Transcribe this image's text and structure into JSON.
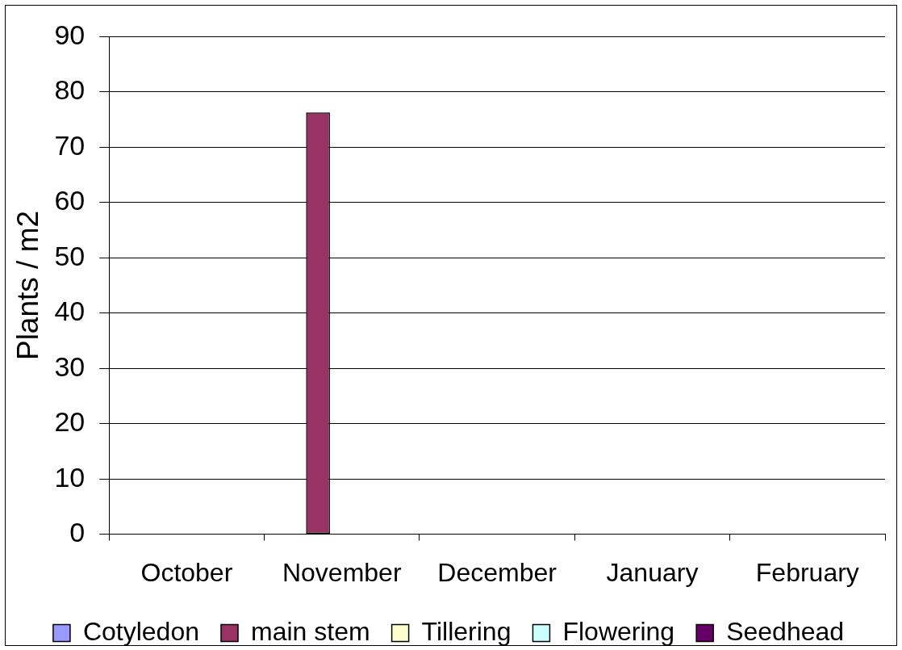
{
  "chart_data": {
    "type": "bar",
    "ylabel": "Plants / m2",
    "categories": [
      "October",
      "November",
      "December",
      "January",
      "February"
    ],
    "series": [
      {
        "name": "Cotyledon",
        "color": "#9999ff",
        "values": [
          0,
          0,
          0,
          0,
          0
        ]
      },
      {
        "name": "main stem",
        "color": "#993366",
        "values": [
          0,
          76.3,
          0,
          0,
          0
        ]
      },
      {
        "name": "Tillering",
        "color": "#ffffcc",
        "values": [
          0,
          0,
          0,
          0,
          0
        ]
      },
      {
        "name": "Flowering",
        "color": "#ccffff",
        "values": [
          0,
          0,
          0,
          0,
          0
        ]
      },
      {
        "name": "Seedhead",
        "color": "#660066",
        "values": [
          0,
          0,
          0,
          0,
          0
        ]
      }
    ],
    "ylim": [
      0,
      90
    ],
    "yticks": [
      0,
      10,
      20,
      30,
      40,
      50,
      60,
      70,
      80,
      90
    ],
    "grid": "y",
    "legend": "bottom"
  }
}
